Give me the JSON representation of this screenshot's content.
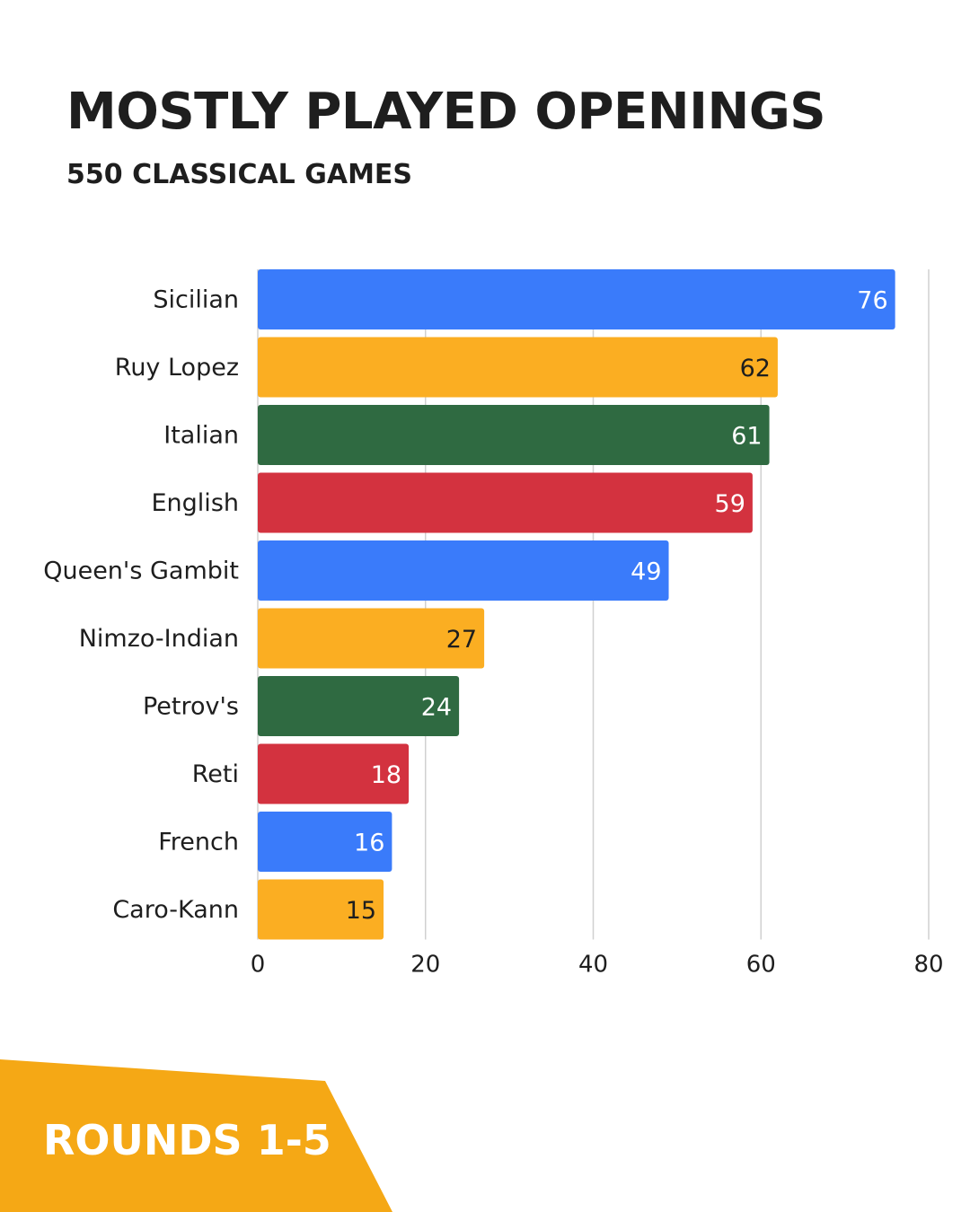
{
  "header": {
    "title": "MOSTLY PLAYED OPENINGS",
    "subtitle": "550 CLASSICAL GAMES"
  },
  "footer": {
    "badge_label": "ROUNDS 1-5",
    "badge_color": "#F5A815"
  },
  "chart_data": {
    "type": "bar",
    "orientation": "horizontal",
    "categories": [
      "Sicilian",
      "Ruy Lopez",
      "Italian",
      "English",
      "Queen's Gambit",
      "Nimzo-Indian",
      "Petrov's",
      "Reti",
      "French",
      "Caro-Kann"
    ],
    "values": [
      76,
      62,
      61,
      59,
      49,
      27,
      24,
      18,
      16,
      15
    ],
    "bar_colors": [
      "#3A7BFA",
      "#FBAE22",
      "#2F6A41",
      "#D3323F",
      "#3A7BFA",
      "#FBAE22",
      "#2F6A41",
      "#D3323F",
      "#3A7BFA",
      "#FBAE22"
    ],
    "label_colors": [
      "#ffffff",
      "#1e1e1e",
      "#ffffff",
      "#ffffff",
      "#ffffff",
      "#1e1e1e",
      "#ffffff",
      "#ffffff",
      "#ffffff",
      "#1e1e1e"
    ],
    "x_ticks": [
      0,
      20,
      40,
      60,
      80
    ],
    "xlim": [
      0,
      80
    ],
    "grid": "vertical",
    "data_labels": "inside-end"
  }
}
